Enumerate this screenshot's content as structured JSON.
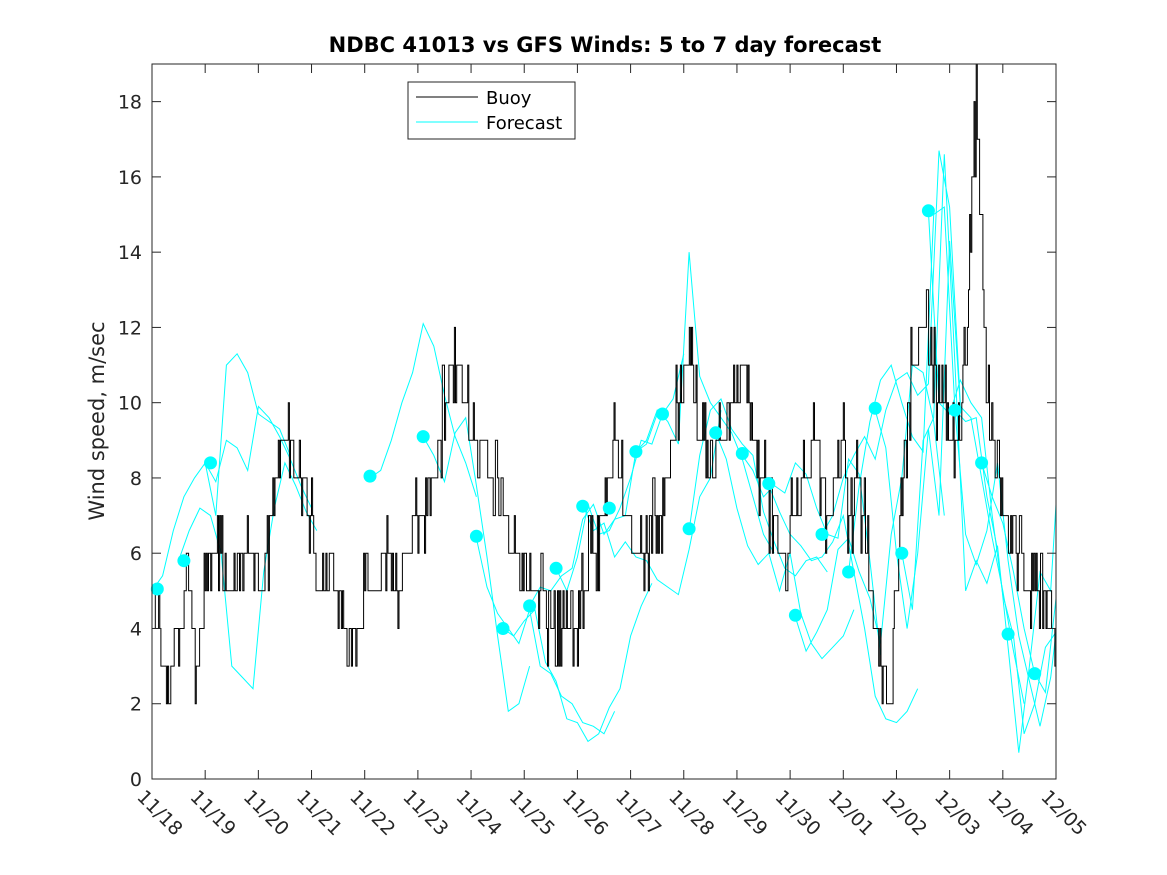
{
  "chart_data": {
    "type": "line",
    "title": "NDBC 41013 vs GFS Winds: 5 to 7 day forecast",
    "xlabel": "",
    "ylabel": "Wind speed, m/sec",
    "xlim": [
      0,
      17
    ],
    "ylim": [
      0,
      19
    ],
    "x_tick_labels": [
      "11/18",
      "11/19",
      "11/20",
      "11/21",
      "11/22",
      "11/23",
      "11/24",
      "11/25",
      "11/26",
      "11/27",
      "11/28",
      "11/29",
      "11/30",
      "12/01",
      "12/02",
      "12/03",
      "12/04",
      "12/05"
    ],
    "y_ticks": [
      0,
      2,
      4,
      6,
      8,
      10,
      12,
      14,
      16,
      18
    ],
    "legend": {
      "position": "top-center",
      "entries": [
        "Buoy",
        "Forecast"
      ]
    },
    "colors": {
      "buoy": "#000000",
      "forecast": "#00ffff",
      "axes": "#262626"
    },
    "buoy_anchor": {
      "x": [
        0.0,
        0.1,
        0.2,
        0.35,
        0.5,
        0.7,
        0.85,
        1.0,
        1.1,
        1.3,
        1.5,
        1.7,
        1.9,
        2.1,
        2.3,
        2.5,
        2.8,
        3.0,
        3.1,
        3.4,
        3.7,
        3.9,
        4.0,
        4.2,
        4.4,
        4.6,
        4.8,
        5.0,
        5.3,
        5.5,
        5.7,
        5.9,
        6.0,
        6.2,
        6.4,
        6.6,
        6.8,
        7.0,
        7.3,
        7.5,
        7.7,
        7.9,
        8.1,
        8.3,
        8.5,
        8.7,
        8.9,
        9.1,
        9.3,
        9.5,
        9.7,
        9.9,
        10.1,
        10.3,
        10.5,
        10.7,
        10.9,
        11.1,
        11.3,
        11.5,
        11.7,
        11.9,
        12.1,
        12.3,
        12.5,
        12.7,
        12.9,
        13.0,
        13.1,
        13.3,
        13.5,
        13.7,
        13.9,
        14.1,
        14.3,
        14.5,
        14.7,
        14.8,
        14.9,
        15.1,
        15.3,
        15.5,
        15.7,
        15.9,
        16.0,
        16.2,
        16.5,
        16.8,
        17.0
      ],
      "y": [
        5,
        4,
        3,
        3,
        4,
        5,
        3,
        5,
        6,
        6,
        5,
        6,
        6,
        5,
        8,
        9,
        8,
        7,
        5,
        5,
        4,
        4,
        5,
        5,
        6,
        5,
        6,
        7,
        8,
        10,
        11,
        10,
        9,
        9,
        8,
        7,
        6,
        5,
        5,
        4,
        4,
        4,
        5,
        6,
        7,
        9,
        7,
        6,
        6,
        7,
        8,
        10,
        11,
        9,
        8,
        9,
        10,
        11,
        9,
        8,
        7,
        6,
        7,
        8,
        9,
        7,
        8,
        9,
        7,
        8,
        5,
        3,
        2,
        8,
        11,
        12,
        11,
        10,
        10,
        9,
        11,
        18,
        10,
        8,
        7,
        6,
        5,
        5,
        4
      ]
    },
    "forecast_runs": [
      {
        "x": [
          0.0,
          0.2,
          0.4,
          0.6,
          0.8,
          1.0,
          1.2,
          1.4,
          1.6,
          1.8,
          2.0,
          2.2,
          2.4,
          2.6,
          2.8,
          3.0
        ],
        "y": [
          5.0,
          5.4,
          6.6,
          7.5,
          8.0,
          8.4,
          7.9,
          9.0,
          8.8,
          8.2,
          9.9,
          9.6,
          9.1,
          8.5,
          7.8,
          7.2
        ]
      },
      {
        "x": [
          0.5,
          0.7,
          0.9,
          1.1,
          1.3,
          1.5,
          1.7,
          1.9,
          2.1,
          2.3,
          2.5,
          2.7,
          2.9,
          3.1
        ],
        "y": [
          5.8,
          6.6,
          7.2,
          7.0,
          6.0,
          3.0,
          2.7,
          2.4,
          5.5,
          7.2,
          8.4,
          7.8,
          7.1,
          6.6
        ]
      },
      {
        "x": [
          1.0,
          1.2,
          1.4,
          1.6,
          1.8,
          2.0,
          2.2,
          2.4,
          2.6
        ],
        "y": [
          8.4,
          7.0,
          11.0,
          11.3,
          10.8,
          9.7,
          9.5,
          9.3,
          8.6
        ]
      },
      {
        "x": [
          4.1,
          4.3,
          4.5,
          4.7,
          4.9,
          5.1,
          5.3,
          5.5,
          5.7,
          5.9,
          6.1
        ],
        "y": [
          8.0,
          8.2,
          9.0,
          10.0,
          10.8,
          12.1,
          11.5,
          10.2,
          9.1,
          8.4,
          7.5
        ]
      },
      {
        "x": [
          5.1,
          5.3,
          5.5,
          5.7,
          5.9,
          6.1,
          6.3,
          6.5,
          6.7,
          6.9,
          7.1
        ],
        "y": [
          9.1,
          8.6,
          7.9,
          9.2,
          9.6,
          7.8,
          5.9,
          3.8,
          1.8,
          2.0,
          3.0
        ]
      },
      {
        "x": [
          6.1,
          6.3,
          6.5,
          6.7,
          6.9,
          7.1,
          7.3,
          7.5,
          7.7,
          7.9,
          8.1,
          8.3,
          8.5,
          8.7
        ],
        "y": [
          6.4,
          5.1,
          4.4,
          4.0,
          3.6,
          4.5,
          3.0,
          2.8,
          2.2,
          2.0,
          1.5,
          1.4,
          1.2,
          1.8
        ]
      },
      {
        "x": [
          6.6,
          6.8,
          7.0,
          7.2,
          7.4,
          7.6,
          7.8,
          8.0,
          8.2,
          8.4,
          8.6,
          8.8,
          9.0,
          9.2,
          9.4
        ],
        "y": [
          4.0,
          3.8,
          4.2,
          4.5,
          3.1,
          2.6,
          1.6,
          1.5,
          1.0,
          1.2,
          1.9,
          2.4,
          3.8,
          4.6,
          5.2
        ]
      },
      {
        "x": [
          7.1,
          7.3,
          7.5,
          7.7,
          7.9,
          8.1,
          8.3,
          8.5,
          8.7,
          8.9,
          9.1,
          9.3,
          9.5
        ],
        "y": [
          4.6,
          5.1,
          5.0,
          5.4,
          5.6,
          6.9,
          7.3,
          6.5,
          6.9,
          7.0,
          8.7,
          8.9,
          9.7
        ]
      },
      {
        "x": [
          7.6,
          7.8,
          8.0,
          8.2,
          8.4,
          8.6,
          8.8,
          9.0,
          9.2,
          9.4,
          9.6,
          9.8,
          10.0
        ],
        "y": [
          5.6,
          5.0,
          5.9,
          7.3,
          6.5,
          6.6,
          7.2,
          8.0,
          9.0,
          8.9,
          9.7,
          10.1,
          11.3
        ]
      },
      {
        "x": [
          8.1,
          8.3,
          8.5,
          8.7,
          8.9,
          9.1,
          9.3,
          9.5,
          9.7,
          9.9,
          10.1,
          10.3,
          10.5,
          10.7
        ],
        "y": [
          7.3,
          6.6,
          6.8,
          5.9,
          6.3,
          5.9,
          5.8,
          5.3,
          5.1,
          4.9,
          6.1,
          7.5,
          8.0,
          9.8
        ]
      },
      {
        "x": [
          9.1,
          9.3,
          9.5,
          9.7,
          9.9,
          10.1,
          10.3,
          10.5,
          10.7,
          10.9,
          11.1,
          11.3,
          11.5,
          11.7
        ],
        "y": [
          8.7,
          9.0,
          9.8,
          9.5,
          8.9,
          14.0,
          10.7,
          10.0,
          9.6,
          9.2,
          8.5,
          7.5,
          6.5,
          6.0
        ]
      },
      {
        "x": [
          10.1,
          10.3,
          10.5,
          10.7,
          10.9,
          11.1,
          11.3,
          11.5,
          11.7,
          11.9,
          12.1,
          12.3,
          12.5,
          12.7
        ],
        "y": [
          6.6,
          8.6,
          9.8,
          10.1,
          9.3,
          8.9,
          8.6,
          7.1,
          6.3,
          5.6,
          5.4,
          5.8,
          5.9,
          5.5
        ]
      },
      {
        "x": [
          10.6,
          10.8,
          11.0,
          11.2,
          11.4,
          11.6,
          11.8,
          12.0,
          12.2,
          12.4,
          12.6,
          12.8,
          13.0,
          13.2
        ],
        "y": [
          9.2,
          8.5,
          7.2,
          6.2,
          5.7,
          6.0,
          5.0,
          6.0,
          4.4,
          3.6,
          3.2,
          3.5,
          3.8,
          4.5
        ]
      },
      {
        "x": [
          11.1,
          11.3,
          11.5,
          11.7,
          11.9,
          12.1,
          12.3,
          12.5,
          12.7,
          12.9,
          13.1,
          13.3,
          13.5,
          13.7
        ],
        "y": [
          8.6,
          8.2,
          7.5,
          7.8,
          7.6,
          8.4,
          8.1,
          7.2,
          6.5,
          6.4,
          8.5,
          8.1,
          5.8,
          3.3
        ]
      },
      {
        "x": [
          11.6,
          11.8,
          12.0,
          12.2,
          12.4,
          12.6,
          12.8,
          13.0,
          13.2,
          13.4,
          13.6,
          13.8,
          14.0,
          14.2,
          14.4
        ],
        "y": [
          7.8,
          7.1,
          6.5,
          6.2,
          5.8,
          5.9,
          6.3,
          7.0,
          5.5,
          4.0,
          2.2,
          1.6,
          1.5,
          1.8,
          2.4
        ]
      },
      {
        "x": [
          12.1,
          12.3,
          12.5,
          12.7,
          12.9,
          13.1,
          13.3,
          13.5,
          13.7,
          13.9,
          14.1,
          14.3,
          14.5,
          14.7,
          14.9
        ],
        "y": [
          4.3,
          3.4,
          3.9,
          4.5,
          6.1,
          6.4,
          5.5,
          4.8,
          3.6,
          6.5,
          8.0,
          11.0,
          10.8,
          9.5,
          7.0
        ]
      },
      {
        "x": [
          12.6,
          12.8,
          13.0,
          13.2,
          13.4,
          13.6,
          13.8,
          14.0,
          14.2,
          14.4,
          14.6,
          14.8,
          15.0,
          15.2
        ],
        "y": [
          6.5,
          7.0,
          8.0,
          8.6,
          9.1,
          8.5,
          9.8,
          10.6,
          10.8,
          10.2,
          10.5,
          16.7,
          15.2,
          10.0
        ]
      },
      {
        "x": [
          13.1,
          13.3,
          13.5,
          13.7,
          13.9,
          14.1,
          14.3,
          14.5,
          14.7,
          14.9,
          15.1,
          15.3,
          15.5,
          15.7,
          15.9
        ],
        "y": [
          5.5,
          7.8,
          9.5,
          10.6,
          11.0,
          10.0,
          9.1,
          8.7,
          15.0,
          15.2,
          9.8,
          9.5,
          9.6,
          7.5,
          6.1
        ]
      },
      {
        "x": [
          13.6,
          13.8,
          14.0,
          14.2,
          14.4,
          14.6,
          14.8,
          15.0,
          15.2,
          15.4,
          15.6,
          15.8,
          16.0,
          16.2,
          16.4
        ],
        "y": [
          9.8,
          8.8,
          6.0,
          4.0,
          6.0,
          9.3,
          7.0,
          14.3,
          9.9,
          9.6,
          8.0,
          6.4,
          5.0,
          3.4,
          2.0
        ]
      },
      {
        "x": [
          14.1,
          14.3,
          14.5,
          14.7,
          14.9,
          15.1,
          15.3,
          15.5,
          15.7,
          15.9,
          16.1,
          16.3,
          16.5,
          16.7,
          16.9,
          17.0
        ],
        "y": [
          6.0,
          4.5,
          9.0,
          9.6,
          16.6,
          11.0,
          5.0,
          5.8,
          5.2,
          6.2,
          3.5,
          0.7,
          3.0,
          5.5,
          5.0,
          7.3
        ]
      },
      {
        "x": [
          14.6,
          14.8,
          15.0,
          15.2,
          15.4,
          15.6,
          15.8,
          16.0,
          16.2,
          16.4,
          16.6,
          16.8,
          17.0
        ],
        "y": [
          15.1,
          10.0,
          9.7,
          10.6,
          10.0,
          9.6,
          7.0,
          4.9,
          3.8,
          1.2,
          2.0,
          3.5,
          3.9
        ]
      },
      {
        "x": [
          15.1,
          15.3,
          15.5,
          15.7,
          15.9,
          16.1,
          16.3,
          16.5,
          16.7,
          16.9,
          17.0
        ],
        "y": [
          9.8,
          6.5,
          5.7,
          6.6,
          8.4,
          5.8,
          3.8,
          2.6,
          1.4,
          2.7,
          3.9
        ]
      },
      {
        "x": [
          15.6,
          15.8,
          16.0,
          16.2,
          16.4,
          16.6,
          16.8,
          17.0
        ],
        "y": [
          8.4,
          7.5,
          6.8,
          5.5,
          4.0,
          2.8,
          2.3,
          4.8
        ]
      }
    ],
    "markers": {
      "x": [
        0.1,
        0.6,
        1.1,
        4.1,
        5.1,
        6.1,
        6.6,
        7.1,
        7.6,
        8.1,
        8.6,
        9.1,
        9.6,
        10.1,
        10.6,
        11.1,
        11.6,
        12.1,
        12.6,
        13.1,
        13.6,
        14.1,
        14.6,
        15.1,
        15.6,
        16.1,
        16.6
      ],
      "y": [
        5.05,
        5.8,
        8.4,
        8.05,
        9.1,
        6.45,
        4.0,
        4.6,
        5.6,
        7.25,
        7.2,
        8.7,
        9.7,
        6.65,
        9.2,
        8.65,
        7.85,
        4.35,
        6.5,
        5.5,
        9.85,
        6.0,
        15.1,
        9.8,
        8.4,
        3.85,
        2.8
      ]
    }
  }
}
